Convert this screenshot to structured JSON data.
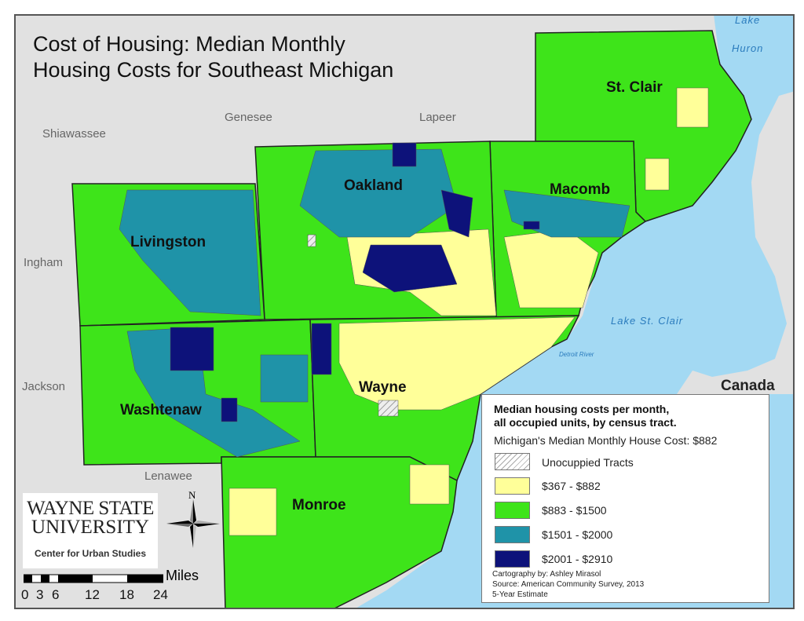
{
  "title": {
    "line1": "Cost of Housing: Median Monthly",
    "line2": "Housing Costs for Southeast Michigan"
  },
  "neighbor_counties": [
    "Shiawassee",
    "Genesee",
    "Lapeer",
    "Ingham",
    "Jackson",
    "Lenawee"
  ],
  "counties": [
    "St. Clair",
    "Macomb",
    "Oakland",
    "Livingston",
    "Washtenaw",
    "Wayne",
    "Monroe"
  ],
  "water_labels": {
    "lake_huron_1": "Lake",
    "lake_huron_2": "Huron",
    "lake_st_clair": "Lake St. Clair",
    "detroit_river": "Detroit River"
  },
  "country_label": "Canada",
  "legend": {
    "title_line1": "Median housing costs per month,",
    "title_line2": "all occupied units, by census tract.",
    "median_note": "Michigan's Median Monthly House Cost: $882",
    "classes": [
      {
        "label": "Unocuppied Tracts",
        "color": "hatch"
      },
      {
        "label": "$367 - $882",
        "color": "#ffff99"
      },
      {
        "label": "$883 - $1500",
        "color": "#3ee41a"
      },
      {
        "label": "$1501 - $2000",
        "color": "#1f93a8"
      },
      {
        "label": "$2001 - $2910",
        "color": "#0d127a"
      }
    ],
    "credits": [
      "Cartography by: Ashley Mirasol",
      "Source: American Community Survey, 2013",
      "5-Year Estimate"
    ]
  },
  "logo": {
    "line1": "WAYNE STATE",
    "line2": "UNIVERSITY",
    "line3": "Center for Urban Studies"
  },
  "north_arrow": {
    "label": "N"
  },
  "scale_bar": {
    "unit": "Miles",
    "ticks": [
      "0",
      "3",
      "6",
      "12",
      "18",
      "24"
    ]
  }
}
